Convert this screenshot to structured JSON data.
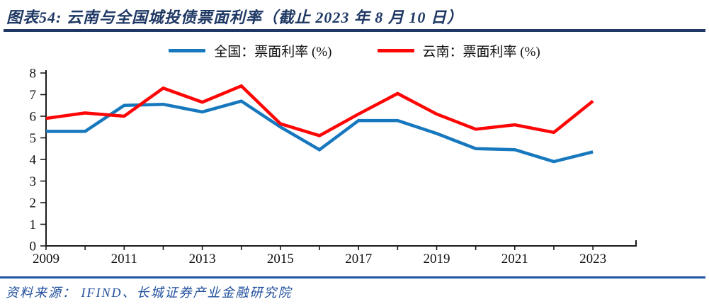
{
  "header": {
    "title": "图表54:  云南与全国城投债票面利率（截止 2023 年 8 月 10 日）"
  },
  "legend": [
    {
      "label": "全国：票面利率 (%)",
      "color": "#1778be"
    },
    {
      "label": "云南：票面利率 (%)",
      "color": "#fe0606"
    }
  ],
  "footer": {
    "source": "资料来源：  IFIND、长城证券产业金融研究院"
  },
  "colors": {
    "title_navy": "#1f3864",
    "footer_blue": "#1f4e9c",
    "axis_black": "#1a1a1a",
    "national_blue": "#1778be",
    "yunnan_red": "#fe0606"
  },
  "chart_data": {
    "type": "line",
    "title": "云南与全国城投债票面利率（截止 2023 年 8 月 10 日）",
    "x": [
      2009,
      2010,
      2011,
      2012,
      2013,
      2014,
      2015,
      2016,
      2017,
      2018,
      2019,
      2020,
      2021,
      2022,
      2023
    ],
    "series": [
      {
        "name": "全国：票面利率 (%)",
        "color": "#1778be",
        "values": [
          5.3,
          5.3,
          6.5,
          6.55,
          6.2,
          6.7,
          5.5,
          4.45,
          5.8,
          5.8,
          5.2,
          4.5,
          4.45,
          3.9,
          4.35
        ]
      },
      {
        "name": "云南：票面利率 (%)",
        "color": "#fe0606",
        "values": [
          5.9,
          6.15,
          6.0,
          7.3,
          6.65,
          7.4,
          5.65,
          5.1,
          6.1,
          7.05,
          6.1,
          5.4,
          5.6,
          5.25,
          6.7
        ]
      }
    ],
    "xlabel": "",
    "ylabel": "",
    "ylim": [
      0,
      8
    ],
    "yticks": [
      0,
      1,
      2,
      3,
      4,
      5,
      6,
      7,
      8
    ],
    "xtick_labels": [
      "2009",
      "2011",
      "2013",
      "2015",
      "2017",
      "2019",
      "2021",
      "2023"
    ],
    "xtick_label_step": 2,
    "grid": false,
    "legend_position": "top-center"
  }
}
